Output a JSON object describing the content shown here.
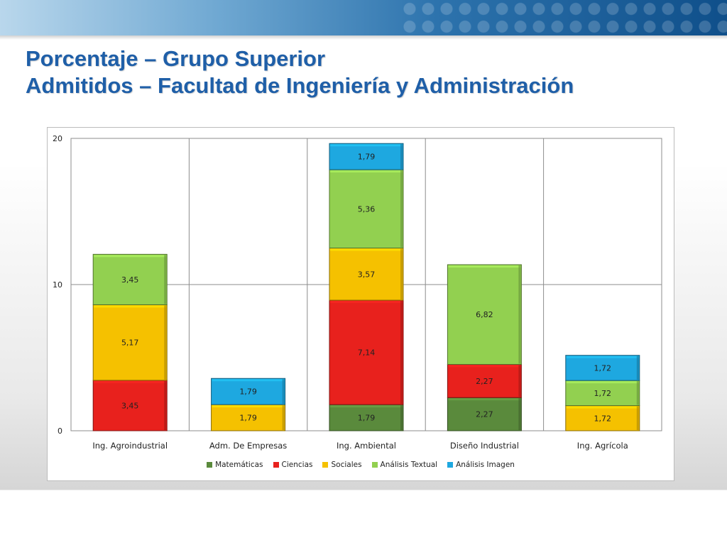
{
  "header": {
    "title_line1": "Porcentaje – Grupo Superior",
    "title_line2": "Admitidos – Facultad de Ingeniería y Administración"
  },
  "colors": {
    "title": "#1f5fa8",
    "series": [
      "#5a8a3c",
      "#e8211d",
      "#f5c100",
      "#92d050",
      "#1ea8e0"
    ]
  },
  "chart_data": {
    "type": "bar",
    "stacked": true,
    "categories": [
      "Ing. Agroindustrial",
      "Adm. De Empresas",
      "Ing. Ambiental",
      "Diseño Industrial",
      "Ing. Agrícola"
    ],
    "series": [
      {
        "name": "Matemáticas",
        "values": [
          null,
          null,
          1.79,
          2.27,
          null
        ],
        "labels": [
          "",
          "",
          "1,79",
          "2,27",
          ""
        ]
      },
      {
        "name": "Ciencias",
        "values": [
          3.45,
          null,
          7.14,
          2.27,
          null
        ],
        "labels": [
          "3,45",
          "",
          "7,14",
          "2,27",
          ""
        ]
      },
      {
        "name": "Sociales",
        "values": [
          5.17,
          1.79,
          3.57,
          null,
          1.72
        ],
        "labels": [
          "5,17",
          "1,79",
          "3,57",
          "",
          "1,72"
        ]
      },
      {
        "name": "Análisis Textual",
        "values": [
          3.45,
          null,
          5.36,
          6.82,
          1.72
        ],
        "labels": [
          "3,45",
          "",
          "5,36",
          "6,82",
          "1,72"
        ]
      },
      {
        "name": "Análisis Imagen",
        "values": [
          null,
          1.79,
          1.79,
          null,
          1.72
        ],
        "labels": [
          "",
          "1,79",
          "1,79",
          "",
          "1,72"
        ]
      }
    ],
    "ylim": [
      0,
      20
    ],
    "yticks": [
      "0",
      "10",
      "20"
    ],
    "grid": true,
    "legend_position": "bottom"
  }
}
